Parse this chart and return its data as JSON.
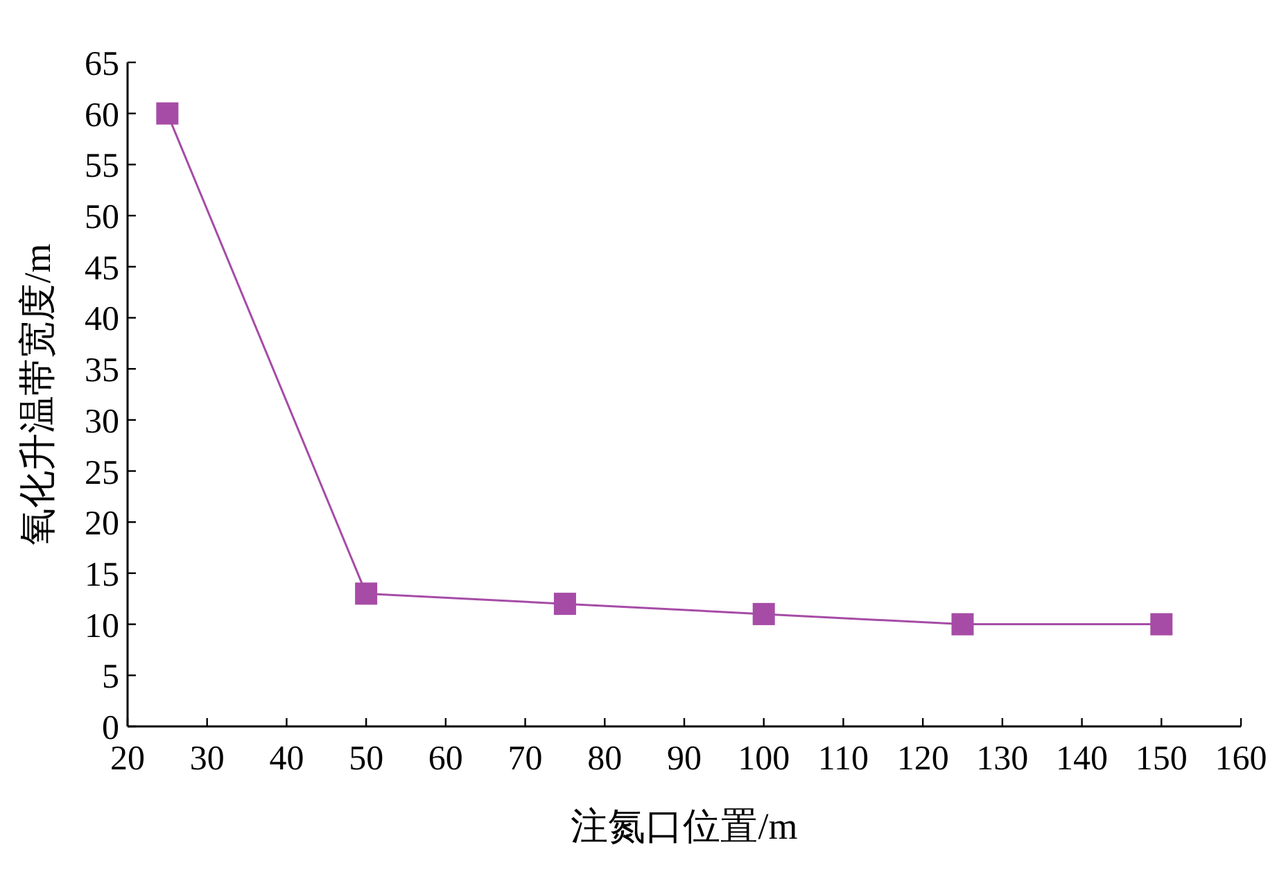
{
  "chart_data": {
    "type": "line",
    "xlabel": "注氮口位置/m",
    "ylabel": "氧化升温带宽度/m",
    "x": [
      25,
      50,
      75,
      100,
      125,
      150
    ],
    "series": [
      {
        "color": "#a64ca6",
        "values": [
          60,
          13,
          12,
          11,
          10,
          10
        ]
      }
    ],
    "xlim": [
      20,
      160
    ],
    "xticks": [
      20,
      30,
      40,
      50,
      60,
      70,
      80,
      90,
      100,
      110,
      120,
      130,
      140,
      150,
      160
    ],
    "ylim": [
      0,
      65
    ],
    "yticks": [
      0,
      5,
      10,
      15,
      20,
      25,
      30,
      35,
      40,
      45,
      50,
      55,
      60,
      65
    ],
    "marker": "square",
    "line_style": "solid",
    "grid": false
  }
}
